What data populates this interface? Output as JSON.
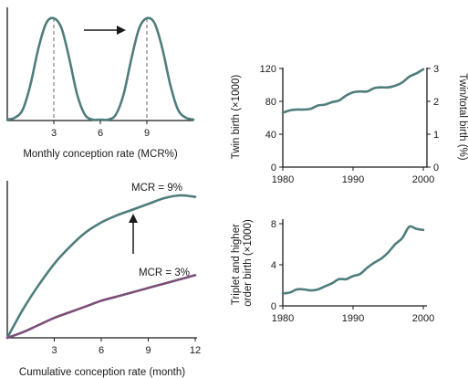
{
  "chart_data": [
    {
      "type": "line",
      "xlabel": "Monthly conception rate (MCR%)",
      "x_ticks": [
        "3",
        "6",
        "9"
      ],
      "xlim": [
        0,
        12
      ],
      "ylim": [
        0,
        1
      ],
      "colors": {
        "curve": "#4f7d7b"
      },
      "series": [
        {
          "x": [
            0.0,
            0.5,
            1.0,
            1.5,
            2.0,
            2.5,
            3.0,
            3.5,
            4.0,
            4.5,
            5.0,
            5.5,
            6.0,
            6.5,
            7.0,
            7.5,
            8.0,
            8.5,
            9.0,
            9.5,
            10.0,
            10.5,
            11.0,
            11.5,
            12.0
          ],
          "y": [
            0.0,
            0.02,
            0.1,
            0.35,
            0.7,
            0.95,
            1.0,
            0.9,
            0.6,
            0.25,
            0.05,
            0.0,
            0.0,
            0.0,
            0.05,
            0.25,
            0.6,
            0.9,
            1.0,
            0.95,
            0.7,
            0.35,
            0.1,
            0.02,
            0.0
          ]
        }
      ],
      "annotations": {
        "dashed_peaks": [
          3,
          9
        ],
        "arrow": "right"
      }
    },
    {
      "type": "line",
      "xlabel": "Cumulative conception rate (month)",
      "x_ticks": [
        "3",
        "6",
        "9",
        "12"
      ],
      "xlim": [
        0,
        12
      ],
      "ylim": [
        0,
        1
      ],
      "colors": {
        "mcr9": "#4f7d7b",
        "mcr3": "#7a4f77"
      },
      "series": [
        {
          "name": "MCR = 9%",
          "x": [
            0,
            1,
            2,
            3,
            4,
            5,
            6,
            7,
            8,
            9,
            10,
            11,
            12
          ],
          "y": [
            0.0,
            0.2,
            0.37,
            0.52,
            0.64,
            0.74,
            0.81,
            0.86,
            0.9,
            0.94,
            0.98,
            1.0,
            0.99
          ]
        },
        {
          "name": "MCR = 3%",
          "x": [
            0,
            1,
            2,
            3,
            4,
            5,
            6,
            7,
            8,
            9,
            10,
            11,
            12
          ],
          "y": [
            0.0,
            0.04,
            0.09,
            0.14,
            0.18,
            0.22,
            0.26,
            0.29,
            0.32,
            0.35,
            0.38,
            0.41,
            0.44
          ]
        }
      ],
      "annotations": {
        "arrow": "up"
      }
    },
    {
      "type": "line",
      "ylabel": "Twin birth (×1000)",
      "y2label": "Twin/total birth (%)",
      "x_ticks": [
        "1980",
        "1990",
        "2000"
      ],
      "y_ticks": [
        "0",
        "40",
        "80",
        "120"
      ],
      "y2_ticks": [
        "0",
        "1",
        "2",
        "3"
      ],
      "xlim": [
        1980,
        2000
      ],
      "ylim": [
        0,
        120
      ],
      "colors": {
        "line": "#4f7d7b"
      },
      "series": [
        {
          "x": [
            1980,
            1981,
            1982,
            1983,
            1984,
            1985,
            1986,
            1987,
            1988,
            1989,
            1990,
            1991,
            1992,
            1993,
            1994,
            1995,
            1996,
            1997,
            1998,
            1999,
            2000
          ],
          "y": [
            66,
            69,
            70,
            70,
            71,
            75,
            76,
            79,
            81,
            87,
            91,
            92,
            92,
            96,
            97,
            97,
            99,
            103,
            110,
            114,
            119
          ]
        }
      ]
    },
    {
      "type": "line",
      "ylabel": "Triplet and higher order birth (×1000)",
      "x_ticks": [
        "1980",
        "1990",
        "2000"
      ],
      "y_ticks": [
        "0",
        "4",
        "8"
      ],
      "xlim": [
        1980,
        2000
      ],
      "ylim": [
        0,
        8
      ],
      "colors": {
        "line": "#4f7d7b"
      },
      "series": [
        {
          "x": [
            1980,
            1981,
            1982,
            1983,
            1984,
            1985,
            1986,
            1987,
            1988,
            1989,
            1990,
            1991,
            1992,
            1993,
            1994,
            1995,
            1996,
            1997,
            1998,
            1999,
            2000
          ],
          "y": [
            1.2,
            1.3,
            1.6,
            1.6,
            1.5,
            1.6,
            1.9,
            2.2,
            2.6,
            2.6,
            2.9,
            3.1,
            3.7,
            4.2,
            4.6,
            5.2,
            6.0,
            6.6,
            7.7,
            7.5,
            7.4
          ]
        }
      ]
    }
  ]
}
